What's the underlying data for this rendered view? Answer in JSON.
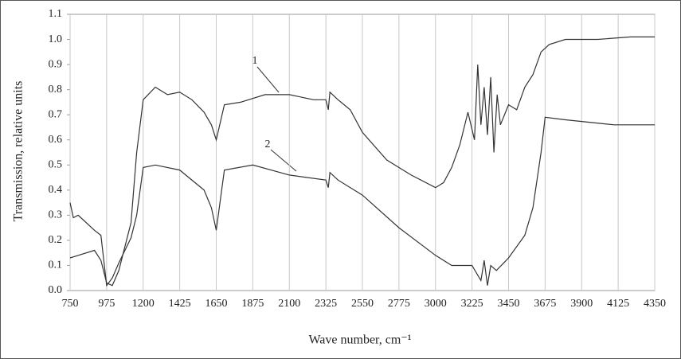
{
  "chart_data": {
    "type": "line",
    "xlabel": "Wave number, cm⁻¹",
    "ylabel": "Transmission, relative units",
    "annotations": [
      "1",
      "2"
    ],
    "xlim": [
      750,
      4350
    ],
    "xticks": [
      750,
      975,
      1200,
      1425,
      1650,
      1875,
      2100,
      2325,
      2550,
      2775,
      3000,
      3225,
      3450,
      3675,
      3900,
      4125,
      4350
    ],
    "ylim": [
      0,
      1.1
    ],
    "yticks": [
      {
        "value": 0,
        "label": "0.0"
      },
      0.1,
      0.2,
      0.3,
      0.4,
      0.5,
      0.6,
      0.7,
      0.8,
      0.9,
      {
        "value": 1,
        "label": "1.0"
      },
      1.1
    ],
    "grid": "x",
    "series": [
      {
        "name": "1",
        "color": "#333333",
        "x": [
          750,
          800,
          900,
          940,
          975,
          1010,
          1050,
          1125,
          1160,
          1200,
          1275,
          1350,
          1425,
          1500,
          1575,
          1620,
          1650,
          1700,
          1800,
          1950,
          2100,
          2250,
          2325,
          2340,
          2350,
          2400,
          2475,
          2550,
          2700,
          2850,
          3000,
          3050,
          3100,
          3150,
          3200,
          3240,
          3260,
          3280,
          3300,
          3320,
          3340,
          3360,
          3380,
          3400,
          3450,
          3500,
          3550,
          3600,
          3650,
          3700,
          3800,
          4000,
          4200,
          4350
        ],
        "values": [
          0.13,
          0.14,
          0.16,
          0.12,
          0.03,
          0.02,
          0.08,
          0.27,
          0.55,
          0.76,
          0.81,
          0.78,
          0.79,
          0.76,
          0.71,
          0.66,
          0.6,
          0.74,
          0.75,
          0.78,
          0.78,
          0.76,
          0.76,
          0.72,
          0.79,
          0.76,
          0.72,
          0.63,
          0.52,
          0.46,
          0.41,
          0.43,
          0.49,
          0.58,
          0.71,
          0.6,
          0.9,
          0.66,
          0.81,
          0.62,
          0.85,
          0.55,
          0.78,
          0.66,
          0.74,
          0.72,
          0.81,
          0.86,
          0.95,
          0.98,
          1.0,
          1.0,
          1.01,
          1.01
        ]
      },
      {
        "name": "2",
        "color": "#333333",
        "x": [
          750,
          770,
          800,
          900,
          940,
          975,
          1010,
          1050,
          1125,
          1160,
          1200,
          1275,
          1425,
          1575,
          1620,
          1650,
          1700,
          1875,
          2100,
          2325,
          2340,
          2350,
          2400,
          2550,
          2775,
          3000,
          3100,
          3225,
          3280,
          3300,
          3320,
          3340,
          3375,
          3450,
          3550,
          3600,
          3650,
          3675,
          3800,
          4100,
          4350
        ],
        "values": [
          0.35,
          0.29,
          0.3,
          0.24,
          0.22,
          0.02,
          0.05,
          0.11,
          0.21,
          0.3,
          0.49,
          0.5,
          0.48,
          0.4,
          0.33,
          0.24,
          0.48,
          0.5,
          0.46,
          0.44,
          0.41,
          0.47,
          0.44,
          0.38,
          0.25,
          0.14,
          0.1,
          0.1,
          0.04,
          0.12,
          0.02,
          0.1,
          0.08,
          0.13,
          0.22,
          0.33,
          0.55,
          0.69,
          0.68,
          0.66,
          0.66
        ]
      }
    ]
  }
}
